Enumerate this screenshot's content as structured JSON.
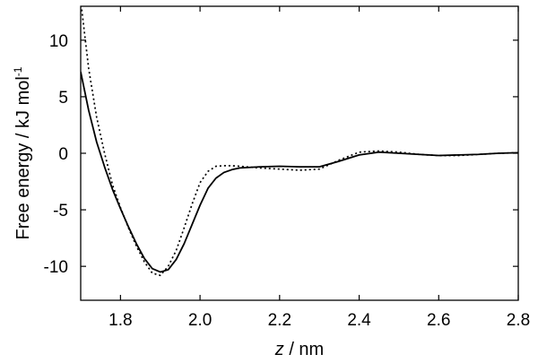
{
  "chart_data": {
    "type": "line",
    "xlabel_var": "z",
    "xlabel_unit": " / nm",
    "ylabel_text": "Free energy / kJ mol",
    "ylabel_sup": "-1",
    "xlim": [
      1.7,
      2.8
    ],
    "ylim": [
      -13,
      13
    ],
    "x_ticks": [
      1.8,
      2.0,
      2.2,
      2.4,
      2.6,
      2.8
    ],
    "x_tick_labels": [
      "1.8",
      "2.0",
      "2.2",
      "2.4",
      "2.6",
      "2.8"
    ],
    "y_ticks": [
      10,
      5,
      0,
      -5,
      -10
    ],
    "y_tick_labels": [
      "10",
      "5",
      "0",
      "-5",
      "-10"
    ],
    "grid": false,
    "series": [
      {
        "style": "solid",
        "color": "#000000",
        "x": [
          1.7,
          1.72,
          1.74,
          1.76,
          1.78,
          1.8,
          1.82,
          1.84,
          1.86,
          1.88,
          1.9,
          1.92,
          1.94,
          1.96,
          1.98,
          2.0,
          2.02,
          2.04,
          2.06,
          2.08,
          2.1,
          2.15,
          2.2,
          2.25,
          2.3,
          2.35,
          2.4,
          2.45,
          2.5,
          2.55,
          2.6,
          2.65,
          2.7,
          2.75,
          2.8
        ],
        "y": [
          7.2,
          3.8,
          1.0,
          -1.2,
          -3.2,
          -4.9,
          -6.5,
          -8.0,
          -9.3,
          -10.2,
          -10.5,
          -10.3,
          -9.4,
          -8.0,
          -6.3,
          -4.6,
          -3.1,
          -2.2,
          -1.7,
          -1.45,
          -1.3,
          -1.2,
          -1.15,
          -1.2,
          -1.2,
          -0.7,
          -0.15,
          0.1,
          0.0,
          -0.1,
          -0.2,
          -0.15,
          -0.1,
          0.0,
          0.05
        ]
      },
      {
        "style": "dotted",
        "color": "#000000",
        "x": [
          1.7,
          1.72,
          1.74,
          1.76,
          1.78,
          1.8,
          1.82,
          1.84,
          1.86,
          1.88,
          1.9,
          1.92,
          1.94,
          1.96,
          1.98,
          2.0,
          2.02,
          2.04,
          2.06,
          2.08,
          2.1,
          2.15,
          2.2,
          2.25,
          2.3,
          2.35,
          2.4,
          2.45,
          2.5,
          2.55,
          2.6,
          2.65,
          2.7,
          2.75,
          2.8
        ],
        "y": [
          13.5,
          7.5,
          3.2,
          0.0,
          -2.8,
          -4.8,
          -6.6,
          -8.2,
          -9.6,
          -10.6,
          -10.8,
          -10.0,
          -8.6,
          -6.6,
          -4.5,
          -2.6,
          -1.6,
          -1.15,
          -1.1,
          -1.1,
          -1.15,
          -1.3,
          -1.4,
          -1.5,
          -1.4,
          -0.6,
          0.1,
          0.2,
          0.1,
          -0.1,
          -0.2,
          -0.2,
          -0.1,
          0.0,
          0.05
        ]
      }
    ]
  }
}
